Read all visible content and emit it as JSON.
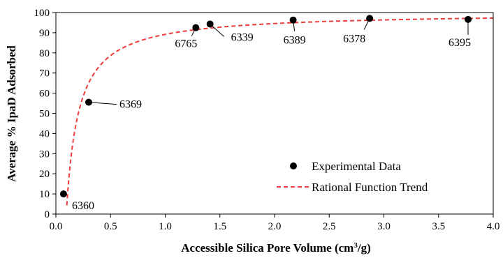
{
  "colors": {
    "points": "#000000",
    "trend": "#ee3b3b",
    "axis": "#000000"
  },
  "chart_data": {
    "type": "scatter",
    "xlabel_main": "Accessible Silica Pore Volume (cm",
    "xlabel_sup": "3",
    "xlabel_tail": "/g)",
    "ylabel": "Average % IpaD Adsorbed",
    "xlim": [
      0,
      4
    ],
    "ylim": [
      0,
      100
    ],
    "xticks": [
      0,
      0.5,
      1,
      1.5,
      2,
      2.5,
      3,
      3.5,
      4
    ],
    "yticks": [
      0,
      10,
      20,
      30,
      40,
      50,
      60,
      70,
      80,
      90,
      100
    ],
    "xtick_labels": [
      "0.0",
      "0.5",
      "1.0",
      "1.5",
      "2.0",
      "2.5",
      "3.0",
      "3.5",
      "4.0"
    ],
    "ytick_labels": [
      "0",
      "10",
      "20",
      "30",
      "40",
      "50",
      "60",
      "70",
      "80",
      "90",
      "100"
    ],
    "grid": false,
    "series": [
      {
        "name": "Experimental Data",
        "kind": "scatter",
        "points": [
          {
            "x": 0.07,
            "y": 10,
            "label": "6360"
          },
          {
            "x": 0.3,
            "y": 55.5,
            "label": "6369"
          },
          {
            "x": 1.28,
            "y": 92.5,
            "label": "6765"
          },
          {
            "x": 1.41,
            "y": 94.3,
            "label": "6339"
          },
          {
            "x": 2.17,
            "y": 96.3,
            "label": "6389"
          },
          {
            "x": 2.87,
            "y": 97.1,
            "label": "6378"
          },
          {
            "x": 3.77,
            "y": 96.6,
            "label": "6395"
          }
        ]
      },
      {
        "name": "Rational Function Trend",
        "kind": "line",
        "style": "dashed",
        "x_start": 0.1,
        "x_end": 4.0,
        "form": "y = a*(x - x0)/(b + (x - x0))",
        "a": 100,
        "b": 0.11,
        "x0": 0.095
      }
    ],
    "legend_position": "bottom-right"
  }
}
